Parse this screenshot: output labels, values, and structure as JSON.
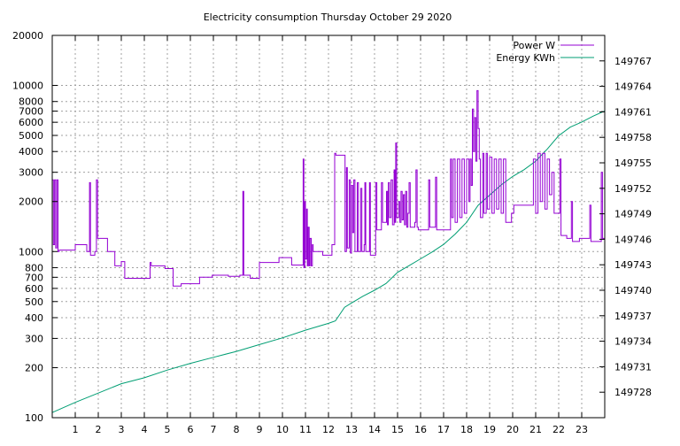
{
  "chart_data": {
    "type": "line",
    "title": "Electricity consumption Thursday October 29 2020",
    "x": {
      "range": [
        0,
        24
      ],
      "tick_labels": [
        "1",
        "2",
        "3",
        "4",
        "5",
        "6",
        "7",
        "8",
        "9",
        "10",
        "11",
        "12",
        "13",
        "14",
        "15",
        "16",
        "17",
        "18",
        "19",
        "20",
        "21",
        "22",
        "23"
      ]
    },
    "y_left": {
      "scale": "log",
      "range": [
        100,
        20000
      ],
      "tick_labels": [
        "100",
        "200",
        "300",
        "400",
        "500",
        "600",
        "700",
        "800",
        "1000",
        "2000",
        "3000",
        "4000",
        "5000",
        "6000",
        "7000",
        "8000",
        "10000",
        "20000"
      ]
    },
    "y_right": {
      "scale": "linear",
      "range": [
        149725,
        149770
      ],
      "tick_labels": [
        "149728",
        "149731",
        "149734",
        "149737",
        "149740",
        "149743",
        "149746",
        "149749",
        "149752",
        "149755",
        "149758",
        "149761",
        "149764",
        "149767"
      ]
    },
    "grid": true,
    "legend_position": "top-right",
    "series": [
      {
        "name": "Power W",
        "axis": "left",
        "color": "#9400d3",
        "style": "step",
        "points": [
          [
            0.0,
            2700
          ],
          [
            0.05,
            1100
          ],
          [
            0.1,
            2700
          ],
          [
            0.15,
            1050
          ],
          [
            0.2,
            2700
          ],
          [
            0.25,
            1000
          ],
          [
            0.3,
            1020
          ],
          [
            0.95,
            1020
          ],
          [
            1.0,
            1100
          ],
          [
            1.45,
            1100
          ],
          [
            1.5,
            1000
          ],
          [
            1.62,
            2600
          ],
          [
            1.66,
            950
          ],
          [
            1.85,
            1000
          ],
          [
            1.92,
            2700
          ],
          [
            1.97,
            1200
          ],
          [
            2.35,
            1200
          ],
          [
            2.4,
            1000
          ],
          [
            2.7,
            1000
          ],
          [
            2.72,
            820
          ],
          [
            2.95,
            820
          ],
          [
            3.0,
            870
          ],
          [
            3.1,
            870
          ],
          [
            3.15,
            690
          ],
          [
            4.2,
            690
          ],
          [
            4.25,
            860
          ],
          [
            4.3,
            820
          ],
          [
            4.85,
            820
          ],
          [
            4.9,
            790
          ],
          [
            5.2,
            790
          ],
          [
            5.25,
            620
          ],
          [
            5.55,
            620
          ],
          [
            5.6,
            640
          ],
          [
            6.35,
            640
          ],
          [
            6.4,
            700
          ],
          [
            6.9,
            700
          ],
          [
            6.95,
            720
          ],
          [
            7.6,
            720
          ],
          [
            7.65,
            710
          ],
          [
            8.1,
            710
          ],
          [
            8.15,
            720
          ],
          [
            8.25,
            720
          ],
          [
            8.28,
            2300
          ],
          [
            8.32,
            720
          ],
          [
            8.6,
            690
          ],
          [
            8.95,
            690
          ],
          [
            9.0,
            860
          ],
          [
            9.8,
            860
          ],
          [
            9.85,
            920
          ],
          [
            10.35,
            920
          ],
          [
            10.4,
            830
          ],
          [
            10.85,
            830
          ],
          [
            10.9,
            3600
          ],
          [
            10.93,
            800
          ],
          [
            10.97,
            2000
          ],
          [
            11.0,
            900
          ],
          [
            11.05,
            1800
          ],
          [
            11.08,
            820
          ],
          [
            11.12,
            1400
          ],
          [
            11.16,
            820
          ],
          [
            11.2,
            1200
          ],
          [
            11.25,
            820
          ],
          [
            11.3,
            1100
          ],
          [
            11.33,
            1000
          ],
          [
            11.7,
            1000
          ],
          [
            11.75,
            950
          ],
          [
            12.1,
            950
          ],
          [
            12.15,
            1100
          ],
          [
            12.25,
            1100
          ],
          [
            12.27,
            3900
          ],
          [
            12.32,
            3800
          ],
          [
            12.7,
            3800
          ],
          [
            12.72,
            1000
          ],
          [
            12.78,
            3200
          ],
          [
            12.82,
            1050
          ],
          [
            12.9,
            2700
          ],
          [
            12.95,
            980
          ],
          [
            13.0,
            2500
          ],
          [
            13.05,
            1300
          ],
          [
            13.1,
            2700
          ],
          [
            13.15,
            1000
          ],
          [
            13.25,
            2600
          ],
          [
            13.3,
            1000
          ],
          [
            13.4,
            2400
          ],
          [
            13.45,
            1000
          ],
          [
            13.55,
            1100
          ],
          [
            13.58,
            2600
          ],
          [
            13.62,
            1000
          ],
          [
            13.75,
            1000
          ],
          [
            13.78,
            2600
          ],
          [
            13.82,
            950
          ],
          [
            14.0,
            950
          ],
          [
            14.05,
            2600
          ],
          [
            14.1,
            1350
          ],
          [
            14.25,
            1350
          ],
          [
            14.3,
            2600
          ],
          [
            14.35,
            1500
          ],
          [
            14.5,
            1500
          ],
          [
            14.52,
            2300
          ],
          [
            14.56,
            1450
          ],
          [
            14.6,
            2600
          ],
          [
            14.65,
            1600
          ],
          [
            14.72,
            2700
          ],
          [
            14.78,
            1450
          ],
          [
            14.85,
            3100
          ],
          [
            14.88,
            1500
          ],
          [
            14.92,
            4500
          ],
          [
            14.96,
            1600
          ],
          [
            15.05,
            2000
          ],
          [
            15.1,
            1500
          ],
          [
            15.15,
            2300
          ],
          [
            15.2,
            1550
          ],
          [
            15.25,
            2200
          ],
          [
            15.3,
            1450
          ],
          [
            15.35,
            2300
          ],
          [
            15.4,
            1400
          ],
          [
            15.45,
            1700
          ],
          [
            15.5,
            2600
          ],
          [
            15.55,
            1400
          ],
          [
            15.7,
            1400
          ],
          [
            15.75,
            1500
          ],
          [
            15.8,
            3100
          ],
          [
            15.85,
            1400
          ],
          [
            15.9,
            1350
          ],
          [
            16.3,
            1350
          ],
          [
            16.35,
            2700
          ],
          [
            16.4,
            1400
          ],
          [
            16.6,
            1400
          ],
          [
            16.65,
            2800
          ],
          [
            16.7,
            1350
          ],
          [
            17.2,
            1350
          ],
          [
            17.3,
            3600
          ],
          [
            17.35,
            1600
          ],
          [
            17.42,
            3600
          ],
          [
            17.5,
            1500
          ],
          [
            17.6,
            3600
          ],
          [
            17.7,
            1600
          ],
          [
            17.8,
            3600
          ],
          [
            17.9,
            1700
          ],
          [
            18.0,
            3600
          ],
          [
            18.1,
            2000
          ],
          [
            18.15,
            3600
          ],
          [
            18.2,
            2500
          ],
          [
            18.25,
            7200
          ],
          [
            18.3,
            4000
          ],
          [
            18.35,
            6400
          ],
          [
            18.4,
            3500
          ],
          [
            18.45,
            9300
          ],
          [
            18.5,
            5500
          ],
          [
            18.55,
            3600
          ],
          [
            18.6,
            1600
          ],
          [
            18.7,
            3900
          ],
          [
            18.75,
            1700
          ],
          [
            18.85,
            3900
          ],
          [
            18.9,
            1800
          ],
          [
            19.0,
            3700
          ],
          [
            19.1,
            1700
          ],
          [
            19.2,
            3600
          ],
          [
            19.3,
            1800
          ],
          [
            19.4,
            3600
          ],
          [
            19.5,
            1700
          ],
          [
            19.6,
            3600
          ],
          [
            19.7,
            1500
          ],
          [
            19.9,
            1500
          ],
          [
            19.95,
            1700
          ],
          [
            20.0,
            1700
          ],
          [
            20.05,
            1900
          ],
          [
            20.85,
            1900
          ],
          [
            20.9,
            3600
          ],
          [
            21.0,
            1700
          ],
          [
            21.1,
            3900
          ],
          [
            21.2,
            2000
          ],
          [
            21.3,
            3900
          ],
          [
            21.4,
            1800
          ],
          [
            21.5,
            3600
          ],
          [
            21.6,
            2200
          ],
          [
            21.7,
            3000
          ],
          [
            21.8,
            1700
          ],
          [
            22.0,
            1700
          ],
          [
            22.05,
            3600
          ],
          [
            22.1,
            1250
          ],
          [
            22.3,
            1250
          ],
          [
            22.35,
            1200
          ],
          [
            22.5,
            1200
          ],
          [
            22.55,
            2000
          ],
          [
            22.6,
            1150
          ],
          [
            22.85,
            1150
          ],
          [
            22.9,
            1200
          ],
          [
            23.3,
            1200
          ],
          [
            23.35,
            1900
          ],
          [
            23.4,
            1150
          ],
          [
            23.8,
            1150
          ],
          [
            23.85,
            3000
          ],
          [
            23.9,
            1200
          ],
          [
            24.0,
            1200
          ]
        ]
      },
      {
        "name": "Energy KWh",
        "axis": "right",
        "color": "#009e73",
        "style": "line",
        "points": [
          [
            0.0,
            149725.6
          ],
          [
            1.0,
            149726.8
          ],
          [
            2.0,
            149727.9
          ],
          [
            3.0,
            149729.0
          ],
          [
            4.0,
            149729.7
          ],
          [
            5.0,
            149730.6
          ],
          [
            6.0,
            149731.4
          ],
          [
            7.0,
            149732.1
          ],
          [
            8.0,
            149732.8
          ],
          [
            9.0,
            149733.6
          ],
          [
            10.0,
            149734.4
          ],
          [
            11.0,
            149735.3
          ],
          [
            12.0,
            149736.1
          ],
          [
            12.3,
            149736.4
          ],
          [
            12.7,
            149738.0
          ],
          [
            13.0,
            149738.5
          ],
          [
            13.5,
            149739.3
          ],
          [
            14.0,
            149740.0
          ],
          [
            14.5,
            149740.8
          ],
          [
            15.0,
            149742.1
          ],
          [
            15.5,
            149742.9
          ],
          [
            16.0,
            149743.7
          ],
          [
            16.5,
            149744.5
          ],
          [
            17.0,
            149745.4
          ],
          [
            17.5,
            149746.6
          ],
          [
            18.0,
            149748.0
          ],
          [
            18.5,
            149750.0
          ],
          [
            19.0,
            149751.2
          ],
          [
            19.5,
            149752.4
          ],
          [
            20.0,
            149753.4
          ],
          [
            20.5,
            149754.2
          ],
          [
            21.0,
            149755.2
          ],
          [
            21.5,
            149756.6
          ],
          [
            22.0,
            149758.2
          ],
          [
            22.5,
            149759.2
          ],
          [
            23.0,
            149759.8
          ],
          [
            23.5,
            149760.5
          ],
          [
            24.0,
            149761.1
          ]
        ]
      }
    ]
  }
}
